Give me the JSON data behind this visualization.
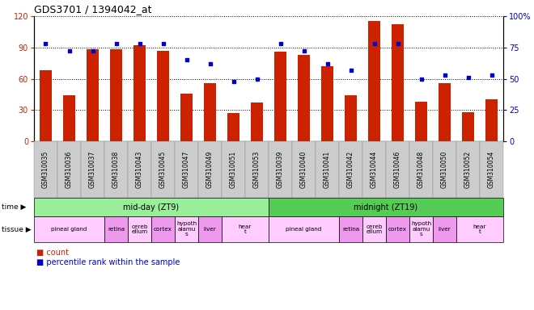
{
  "title": "GDS3701 / 1394042_at",
  "samples": [
    "GSM310035",
    "GSM310036",
    "GSM310037",
    "GSM310038",
    "GSM310043",
    "GSM310045",
    "GSM310047",
    "GSM310049",
    "GSM310051",
    "GSM310053",
    "GSM310039",
    "GSM310040",
    "GSM310041",
    "GSM310042",
    "GSM310044",
    "GSM310046",
    "GSM310048",
    "GSM310050",
    "GSM310052",
    "GSM310054"
  ],
  "counts": [
    68,
    44,
    88,
    88,
    92,
    87,
    46,
    56,
    27,
    37,
    86,
    83,
    72,
    44,
    115,
    112,
    38,
    56,
    28,
    40
  ],
  "percentiles": [
    78,
    72,
    72,
    78,
    78,
    78,
    65,
    62,
    48,
    50,
    78,
    72,
    62,
    57,
    78,
    78,
    50,
    53,
    51,
    53
  ],
  "bar_color": "#cc2200",
  "square_color": "#0000cc",
  "left_ylim": [
    0,
    120
  ],
  "right_ylim": [
    0,
    100
  ],
  "left_yticks": [
    0,
    30,
    60,
    90,
    120
  ],
  "right_yticks": [
    0,
    25,
    50,
    75,
    100
  ],
  "right_yticklabels": [
    "0",
    "25",
    "50",
    "75",
    "100%"
  ],
  "bg_color": "#ffffff",
  "grid_color": "#000000",
  "time_groups": [
    {
      "label": "mid-day (ZT9)",
      "start": 0,
      "end": 10,
      "color": "#99ee99"
    },
    {
      "label": "midnight (ZT19)",
      "start": 10,
      "end": 20,
      "color": "#55cc55"
    }
  ],
  "tissue_groups": [
    {
      "label": "pineal gland",
      "start": 0,
      "end": 3,
      "color": "#ffccff"
    },
    {
      "label": "retina",
      "start": 3,
      "end": 4,
      "color": "#ee99ee"
    },
    {
      "label": "cereb\nellum",
      "start": 4,
      "end": 5,
      "color": "#ffccff"
    },
    {
      "label": "cortex",
      "start": 5,
      "end": 6,
      "color": "#ee99ee"
    },
    {
      "label": "hypoth\nalamu\ns",
      "start": 6,
      "end": 7,
      "color": "#ffccff"
    },
    {
      "label": "liver",
      "start": 7,
      "end": 8,
      "color": "#ee99ee"
    },
    {
      "label": "hear\nt",
      "start": 8,
      "end": 10,
      "color": "#ffccff"
    },
    {
      "label": "pineal gland",
      "start": 10,
      "end": 13,
      "color": "#ffccff"
    },
    {
      "label": "retina",
      "start": 13,
      "end": 14,
      "color": "#ee99ee"
    },
    {
      "label": "cereb\nellum",
      "start": 14,
      "end": 15,
      "color": "#ffccff"
    },
    {
      "label": "cortex",
      "start": 15,
      "end": 16,
      "color": "#ee99ee"
    },
    {
      "label": "hypoth\nalamu\ns",
      "start": 16,
      "end": 17,
      "color": "#ffccff"
    },
    {
      "label": "liver",
      "start": 17,
      "end": 18,
      "color": "#ee99ee"
    },
    {
      "label": "hear\nt",
      "start": 18,
      "end": 20,
      "color": "#ffccff"
    }
  ],
  "legend_count_label": "count",
  "legend_pct_label": "percentile rank within the sample",
  "time_label": "time",
  "tissue_label": "tissue"
}
